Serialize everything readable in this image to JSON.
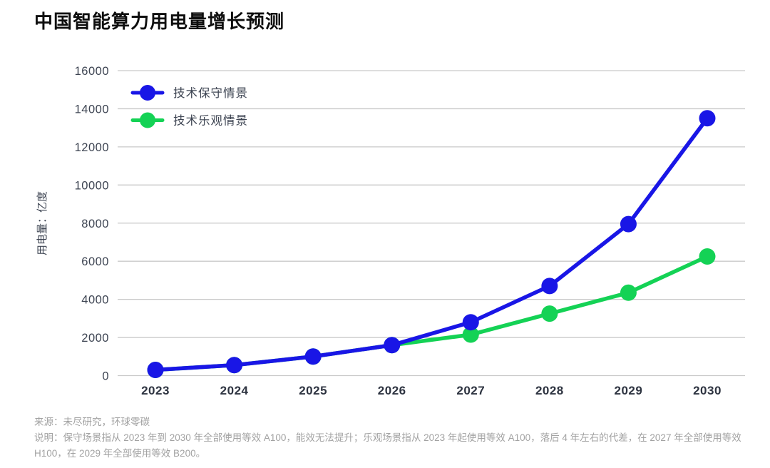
{
  "page": {
    "title": "中国智能算力用电量增长预测"
  },
  "chart_data": {
    "type": "line",
    "title": "中国智能算力用电量增长预测",
    "xlabel": "",
    "ylabel": "用电量：亿度",
    "categories": [
      "2023",
      "2024",
      "2025",
      "2026",
      "2027",
      "2028",
      "2029",
      "2030"
    ],
    "series": [
      {
        "name": "技术保守情景",
        "color": "#1916e6",
        "values": [
          300,
          550,
          1000,
          1600,
          2800,
          4700,
          7950,
          13500
        ]
      },
      {
        "name": "技术乐观情景",
        "color": "#14d255",
        "values": [
          300,
          550,
          1000,
          1600,
          2150,
          3250,
          4350,
          6250
        ]
      }
    ],
    "ylim": [
      0,
      16000
    ],
    "ytick_step": 2000,
    "yticks": [
      0,
      2000,
      4000,
      6000,
      8000,
      10000,
      12000,
      14000,
      16000
    ],
    "grid": true,
    "legend_position": "top-left",
    "colors": {
      "grid": "#c9c9c9",
      "axis_text": "#3d4452",
      "x_label": "#2d3340",
      "title": "#0e0e0e",
      "footnote": "#a2a2a2"
    }
  },
  "legend": {
    "items": [
      {
        "label": "技术保守情景",
        "color": "#1916e6"
      },
      {
        "label": "技术乐观情景",
        "color": "#14d255"
      }
    ]
  },
  "footer": {
    "source": "来源：未尽研究，环球零碳",
    "note": "说明：保守场景指从 2023 年到 2030 年全部使用等效 A100，能效无法提升；乐观场景指从 2023 年起使用等效 A100，落后 4 年左右的代差，在 2027 年全部使用等效 H100，在 2029 年全部使用等效 B200。"
  }
}
